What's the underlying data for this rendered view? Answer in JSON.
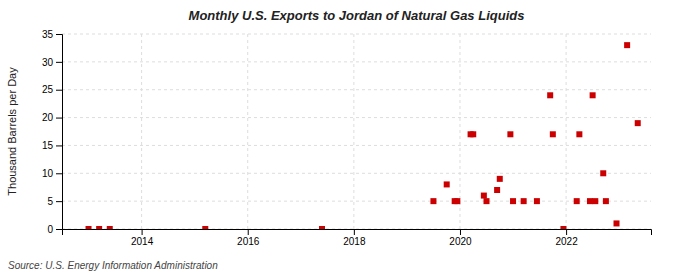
{
  "chart_data": {
    "type": "scatter",
    "title": "Monthly U.S. Exports to Jordan of Natural Gas Liquids",
    "ylabel": "Thousand Barrels per Day",
    "source": "Source: U.S. Energy Information Administration",
    "x": [
      2013.0,
      2013.2,
      2013.4,
      2015.2,
      2017.4,
      2019.5,
      2019.75,
      2019.9,
      2019.95,
      2020.2,
      2020.25,
      2020.45,
      2020.5,
      2020.7,
      2020.75,
      2020.95,
      2021.0,
      2021.2,
      2021.45,
      2021.7,
      2021.75,
      2021.95,
      2022.2,
      2022.25,
      2022.45,
      2022.5,
      2022.55,
      2022.7,
      2022.75,
      2022.95,
      2023.15,
      2023.35
    ],
    "values": [
      0,
      0,
      0,
      0,
      0,
      5,
      8,
      5,
      5,
      17,
      17,
      6,
      5,
      7,
      9,
      17,
      5,
      5,
      5,
      24,
      17,
      0,
      5,
      17,
      5,
      24,
      5,
      10,
      5,
      1,
      33,
      19
    ],
    "color": "#cc0000",
    "marker": "square",
    "xlim": [
      2012.5,
      2023.6
    ],
    "ylim": [
      0,
      35
    ],
    "xticks": [
      2014,
      2016,
      2018,
      2020,
      2022
    ],
    "yticks": [
      0,
      5,
      10,
      15,
      20,
      25,
      30,
      35
    ],
    "grid": true
  }
}
